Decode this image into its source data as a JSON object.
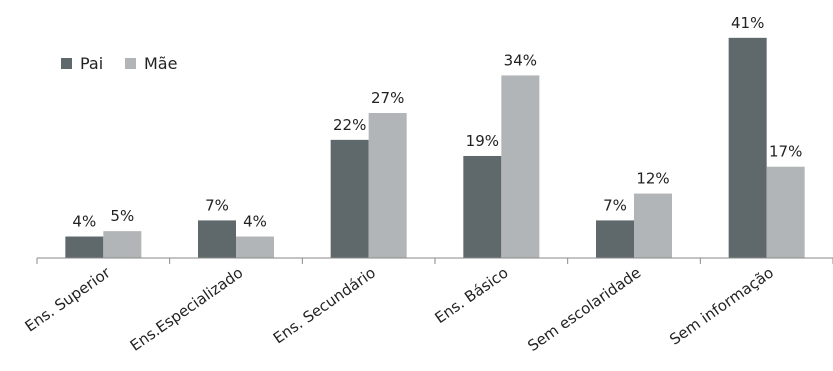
{
  "colors": {
    "pai": "#5f686b",
    "mae": "#b1b5b7",
    "axis": "#8a8a8a"
  },
  "chart_data": {
    "type": "bar",
    "title": "",
    "xlabel": "",
    "ylabel": "",
    "ylim": [
      0,
      45
    ],
    "grid": false,
    "legend": "top-left",
    "categories": [
      "Ens. Superior",
      "Ens.Especializado",
      "Ens. Secundário",
      "Ens. Básico",
      "Sem escolaridade",
      "Sem informação"
    ],
    "series": [
      {
        "name": "Pai",
        "values": [
          4,
          7,
          22,
          19,
          7,
          41
        ],
        "labels": [
          "4%",
          "7%",
          "22%",
          "19%",
          "7%",
          "41%"
        ]
      },
      {
        "name": "Mãe",
        "values": [
          5,
          4,
          27,
          34,
          12,
          17
        ],
        "labels": [
          "5%",
          "4%",
          "27%",
          "34%",
          "12%",
          "17%"
        ]
      }
    ]
  }
}
